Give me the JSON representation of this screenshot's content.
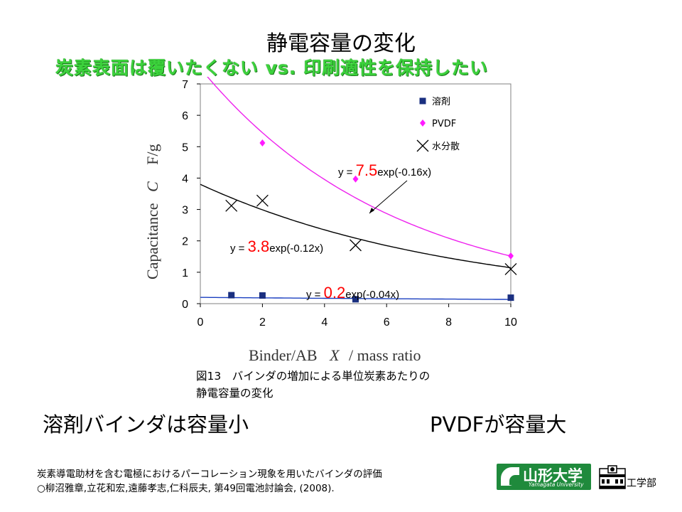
{
  "slide": {
    "title": "静電容量の変化",
    "subtitle": "炭素表面は覆いたくない vs. 印刷適性を保持したい",
    "caption": "図13　バインダの増加による単位炭素あたりの\n静電容量の変化",
    "point_left": "溶剤バインダは容量小",
    "point_right": "PVDFが容量大",
    "reference_line1": "炭素導電助材を含む電極におけるパーコレーション現象を用いたバインダの評価",
    "reference_line2": "○柳沼雅章,立花和宏,遠藤孝志,仁科辰夫, 第49回電池討論会, (2008).",
    "logo_text": "山形大学",
    "logo_roman": "Yamagata University",
    "faculty": "工学部"
  },
  "chart_data": {
    "type": "scatter",
    "title": "",
    "xlabel_main": "Binder/AB",
    "xlabel_symbol": "X",
    "xlabel_unit": "/ mass ratio",
    "ylabel_main": "Capacitance",
    "ylabel_symbol": "C",
    "ylabel_unit": "F/g",
    "xlim": [
      0,
      10
    ],
    "ylim": [
      0,
      7
    ],
    "xticks": [
      0,
      2,
      4,
      6,
      8,
      10
    ],
    "yticks": [
      0,
      1,
      2,
      3,
      4,
      5,
      6,
      7
    ],
    "grid": false,
    "legend_position": "top-right",
    "series": [
      {
        "name": "溶剤",
        "marker": "square",
        "color": "#1a2f80",
        "x": [
          1,
          2,
          5,
          10
        ],
        "y": [
          0.27,
          0.26,
          0.14,
          0.19
        ],
        "fit": {
          "a": 0.2,
          "b": -0.04,
          "color": "#1a3fc0"
        }
      },
      {
        "name": "PVDF",
        "marker": "diamond",
        "color": "#ff1aff",
        "x": [
          2,
          5,
          10
        ],
        "y": [
          5.12,
          3.97,
          1.52
        ],
        "fit": {
          "a": 7.5,
          "b": -0.16,
          "color": "#ee22ee"
        }
      },
      {
        "name": "水分散",
        "marker": "cross",
        "color": "#000000",
        "x": [
          1,
          2,
          5,
          10
        ],
        "y": [
          3.12,
          3.28,
          1.86,
          1.1
        ],
        "fit": {
          "a": 3.8,
          "b": -0.12,
          "color": "#000000"
        }
      }
    ],
    "annotations": [
      {
        "prefix": "y = ",
        "coef": "7.5",
        "suffix": "exp(-0.16x)"
      },
      {
        "prefix": "y = ",
        "coef": "3.8",
        "suffix": "exp(-0.12x)"
      },
      {
        "prefix": "y = ",
        "coef": "0.2",
        "suffix": "exp(-0.04x)"
      }
    ],
    "annotation_color": "#ff0000"
  }
}
